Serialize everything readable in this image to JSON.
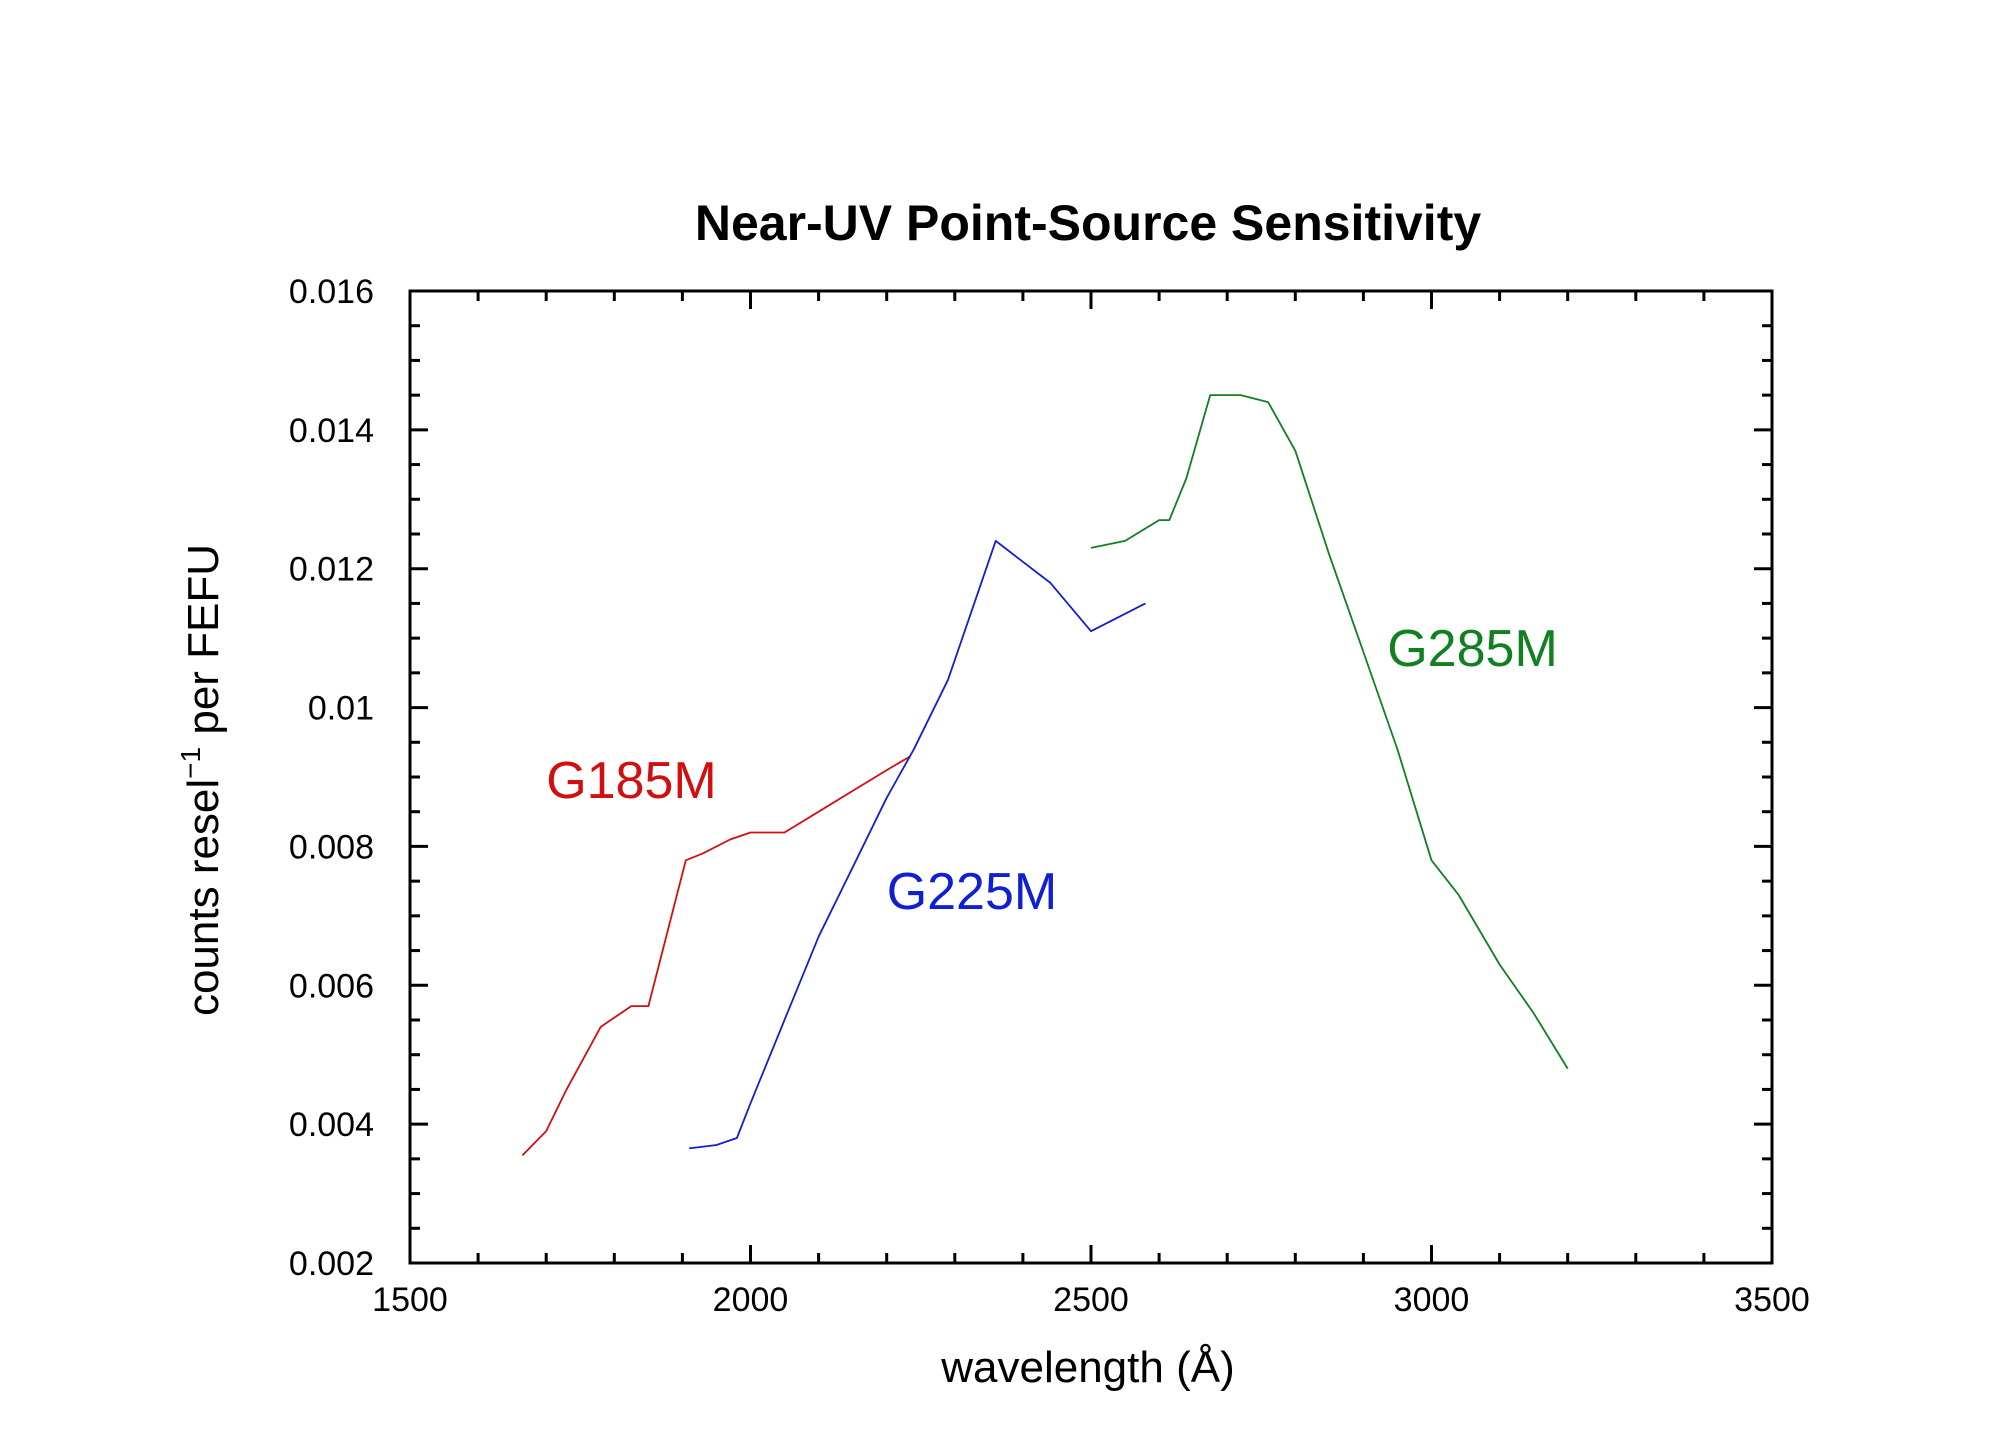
{
  "chart_data": {
    "type": "line",
    "title": "Near-UV Point-Source Sensitivity",
    "xlabel": "wavelength (Å)",
    "ylabel_main": "counts resel",
    "ylabel_sup": "−1",
    "ylabel_tail": " per FEFU",
    "xlim": [
      1500,
      3500
    ],
    "ylim": [
      0.002,
      0.016
    ],
    "x_ticks": [
      1500,
      2000,
      2500,
      3000,
      3500
    ],
    "x_tick_labels": [
      "1500",
      "2000",
      "2500",
      "3000",
      "3500"
    ],
    "y_ticks": [
      0.002,
      0.004,
      0.006,
      0.008,
      0.01,
      0.012,
      0.014,
      0.016
    ],
    "y_tick_labels": [
      "0.002",
      "0.004",
      "0.006",
      "0.008",
      "0.01",
      "0.012",
      "0.014",
      "0.016"
    ],
    "series": [
      {
        "name": "G185M",
        "color": "#d01010",
        "x": [
          1665,
          1700,
          1730,
          1780,
          1825,
          1850,
          1905,
          1930,
          1970,
          2000,
          2030,
          2050,
          2100,
          2150,
          2200,
          2235
        ],
        "y": [
          0.00355,
          0.0039,
          0.0045,
          0.0054,
          0.0057,
          0.0057,
          0.0078,
          0.0079,
          0.0081,
          0.0082,
          0.0082,
          0.0082,
          0.0085,
          0.0088,
          0.0091,
          0.0093
        ]
      },
      {
        "name": "G225M",
        "color": "#1020d0",
        "x": [
          1910,
          1950,
          1980,
          2000,
          2050,
          2100,
          2150,
          2200,
          2240,
          2290,
          2360,
          2400,
          2440,
          2500,
          2540,
          2580
        ],
        "y": [
          0.00365,
          0.0037,
          0.0038,
          0.0043,
          0.0055,
          0.0067,
          0.0077,
          0.0087,
          0.0094,
          0.0104,
          0.0124,
          0.0121,
          0.0118,
          0.0111,
          0.0113,
          0.0115
        ]
      },
      {
        "name": "G285M",
        "color": "#108020",
        "x": [
          2500,
          2550,
          2600,
          2615,
          2640,
          2675,
          2720,
          2760,
          2800,
          2850,
          2900,
          2950,
          3000,
          3040,
          3100,
          3150,
          3200
        ],
        "y": [
          0.0123,
          0.0124,
          0.0127,
          0.0127,
          0.0133,
          0.0145,
          0.0145,
          0.0144,
          0.0137,
          0.0122,
          0.0108,
          0.0094,
          0.0078,
          0.0073,
          0.0063,
          0.0056,
          0.0048
        ]
      }
    ],
    "annotations": [
      {
        "text": "G185M",
        "series": "G185M",
        "x": 1700,
        "y": 0.0087,
        "color": "#d01010"
      },
      {
        "text": "G225M",
        "series": "G225M",
        "x": 2200,
        "y": 0.0071,
        "color": "#1020d0"
      },
      {
        "text": "G285M",
        "series": "G285M",
        "x": 2935,
        "y": 0.0106,
        "color": "#108020"
      }
    ],
    "grid": false,
    "legend": "none"
  }
}
